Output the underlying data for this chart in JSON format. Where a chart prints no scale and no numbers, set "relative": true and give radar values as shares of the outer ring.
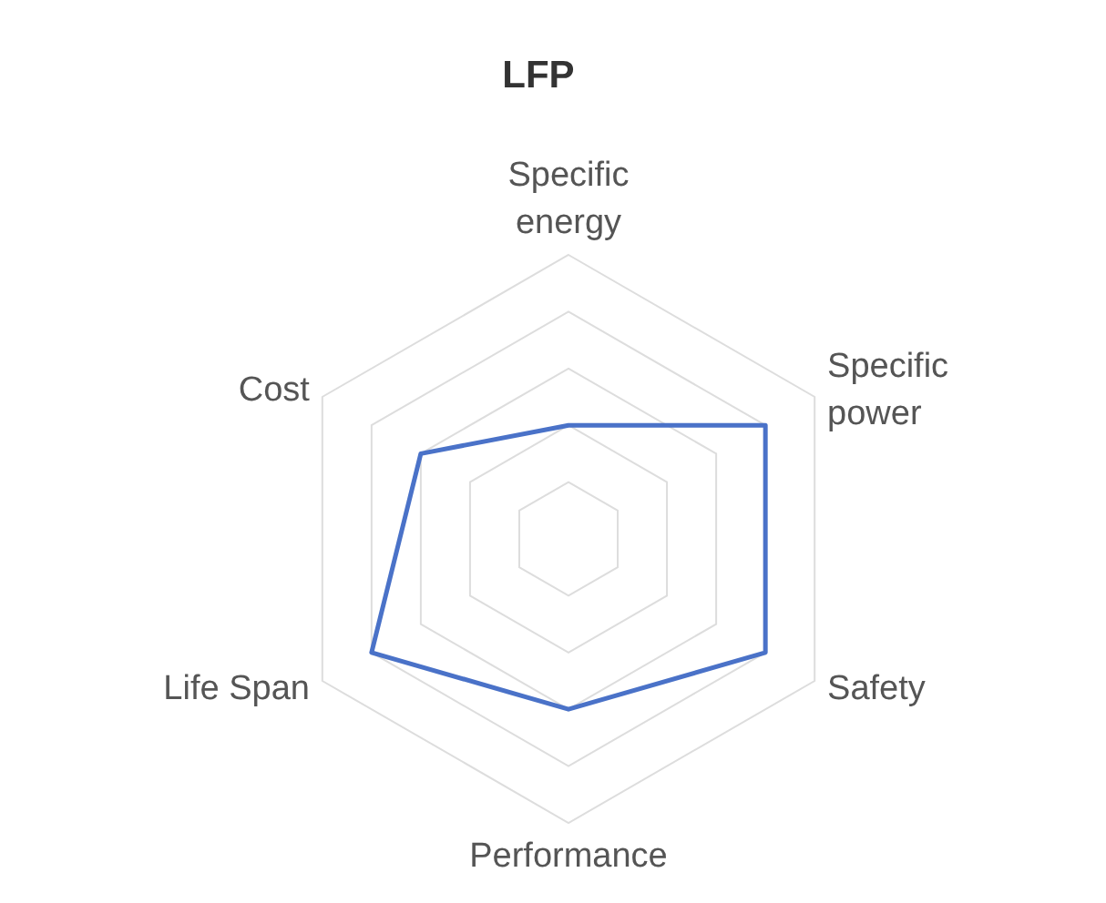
{
  "chart_data": {
    "type": "radar",
    "title": "LFP",
    "relative": true,
    "grid": true,
    "categories": [
      "Specific energy",
      "Specific power",
      "Safety",
      "Performance",
      "Life Span",
      "Cost"
    ],
    "series": [
      {
        "color": "#4a72c8",
        "values": [
          0.4,
          0.8,
          0.8,
          0.6,
          0.8,
          0.6
        ]
      }
    ]
  }
}
